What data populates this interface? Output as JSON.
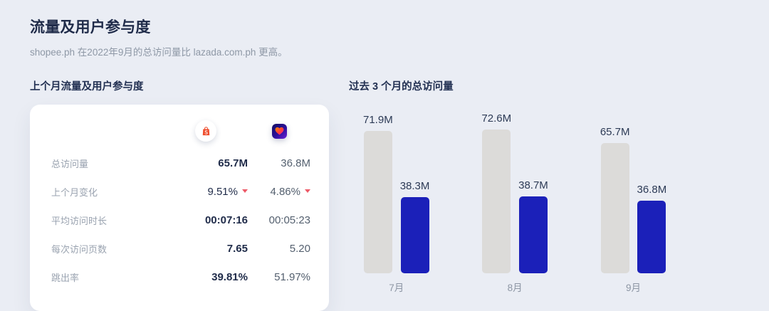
{
  "page": {
    "title": "流量及用户参与度",
    "subtitle": "shopee.ph 在2022年9月的总访问量比 lazada.com.ph 更高。"
  },
  "colors": {
    "accent_blue": "#1b20b9",
    "bar_gray": "#dcdbd9",
    "negative_red": "#ed5a68",
    "page_bg": "#eaedf4",
    "card_bg": "#ffffff",
    "shopee_orange": "#ee4d2d"
  },
  "engagement_card": {
    "section_title": "上个月流量及用户参与度",
    "columns": [
      {
        "site": "shopee",
        "icon": "shopee-icon"
      },
      {
        "site": "lazada",
        "icon": "lazada-icon"
      }
    ],
    "rows": [
      {
        "label": "总访问量",
        "shopee": "65.7M",
        "lazada": "36.8M"
      },
      {
        "label": "上个月变化",
        "shopee": "9.51%",
        "lazada": "4.86%",
        "shopee_trend": "down",
        "lazada_trend": "down"
      },
      {
        "label": "平均访问时长",
        "shopee": "00:07:16",
        "lazada": "00:05:23"
      },
      {
        "label": "每次访问页数",
        "shopee": "7.65",
        "lazada": "5.20"
      },
      {
        "label": "跳出率",
        "shopee": "39.81%",
        "lazada": "51.97%"
      }
    ]
  },
  "chart_section": {
    "section_title": "过去 3 个月的总访问量"
  },
  "chart_data": {
    "type": "bar",
    "title": "过去 3 个月的总访问量",
    "categories": [
      "7月",
      "8月",
      "9月"
    ],
    "series": [
      {
        "name": "shopee.ph",
        "color": "#dcdbd9",
        "values": [
          71.9,
          72.6,
          65.7
        ],
        "labels": [
          "71.9M",
          "72.6M",
          "65.7M"
        ]
      },
      {
        "name": "lazada.com.ph",
        "color": "#1b20b9",
        "values": [
          38.3,
          38.7,
          36.8
        ],
        "labels": [
          "38.3M",
          "38.7M",
          "36.8M"
        ]
      }
    ],
    "unit": "M",
    "ylim": [
      0,
      72.6
    ],
    "grid": false,
    "legend": "none",
    "value_labels": "above-bars"
  }
}
